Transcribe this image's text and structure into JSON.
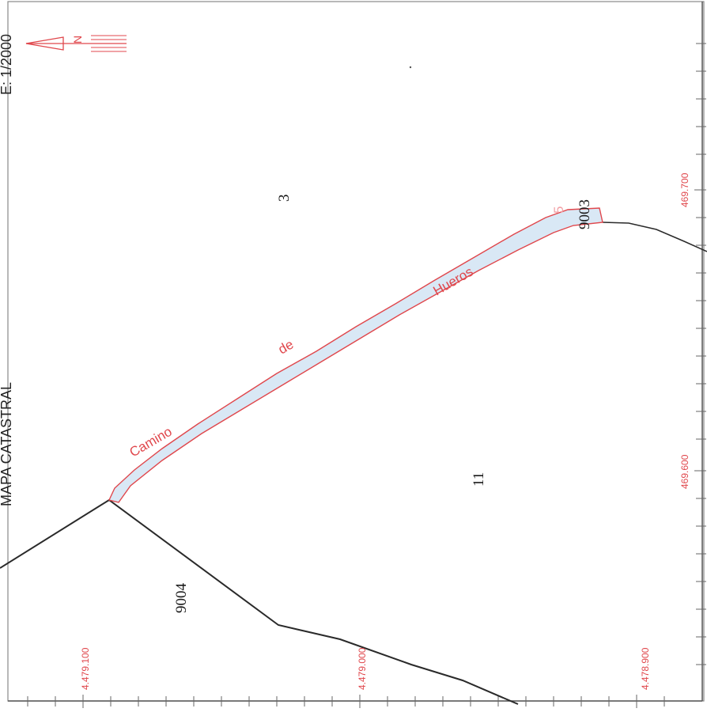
{
  "map": {
    "header_left": "MAPA CATASTRAL",
    "header_right": "E: 1/2000",
    "north_arrow": {
      "icon": "north-arrow-icon",
      "label": "N",
      "color": "#e0474c"
    },
    "road": {
      "words": [
        "Camino",
        "de",
        "Hueros"
      ],
      "fill_color": "#d9e8f5",
      "outline_color": "#e0474c"
    },
    "parcels": [
      "3",
      "11",
      "9003",
      "9004"
    ],
    "parcel_ghost_label": "5",
    "coords_bottom": [
      "4.479.100",
      "4.479.000",
      "4.478.900"
    ],
    "coords_right": [
      "469.700",
      "469.600"
    ],
    "colors": {
      "line": "#2a2a2a",
      "accent": "#e0474c"
    }
  }
}
